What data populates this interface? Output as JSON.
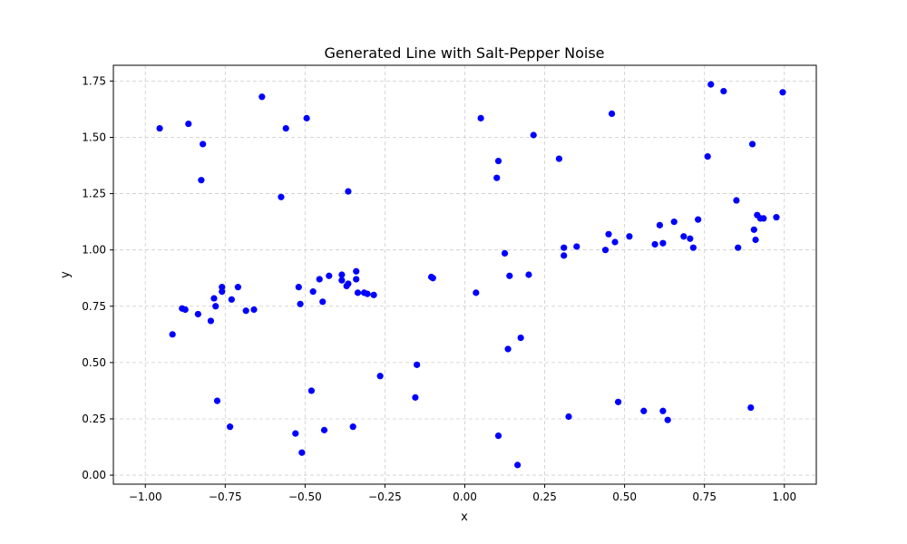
{
  "chart_data": {
    "type": "scatter",
    "title": "Generated Line with Salt-Pepper Noise",
    "xlabel": "x",
    "ylabel": "y",
    "xlim": [
      -1.1,
      1.1
    ],
    "ylim": [
      -0.04,
      1.82
    ],
    "x_ticks": [
      -1.0,
      -0.75,
      -0.5,
      -0.25,
      0.0,
      0.25,
      0.5,
      0.75,
      1.0
    ],
    "x_tick_labels": [
      "−1.00",
      "−0.75",
      "−0.50",
      "−0.25",
      "0.00",
      "0.25",
      "0.50",
      "0.75",
      "1.00"
    ],
    "y_ticks": [
      0.0,
      0.25,
      0.5,
      0.75,
      1.0,
      1.25,
      1.5,
      1.75
    ],
    "y_tick_labels": [
      "0.00",
      "0.25",
      "0.50",
      "0.75",
      "1.00",
      "1.25",
      "1.50",
      "1.75"
    ],
    "grid": true,
    "colors": {
      "points": "#0000ff",
      "grid": "#cccccc",
      "axes": "#000000"
    },
    "points": [
      [
        -0.955,
        1.54
      ],
      [
        -0.865,
        1.56
      ],
      [
        -0.82,
        1.47
      ],
      [
        -0.825,
        1.31
      ],
      [
        -0.915,
        0.625
      ],
      [
        -0.885,
        0.74
      ],
      [
        -0.875,
        0.735
      ],
      [
        -0.835,
        0.715
      ],
      [
        -0.795,
        0.685
      ],
      [
        -0.785,
        0.785
      ],
      [
        -0.78,
        0.75
      ],
      [
        -0.76,
        0.835
      ],
      [
        -0.76,
        0.815
      ],
      [
        -0.73,
        0.78
      ],
      [
        -0.71,
        0.835
      ],
      [
        -0.685,
        0.73
      ],
      [
        -0.66,
        0.735
      ],
      [
        -0.775,
        0.33
      ],
      [
        -0.735,
        0.215
      ],
      [
        -0.635,
        1.68
      ],
      [
        -0.575,
        1.235
      ],
      [
        -0.56,
        1.54
      ],
      [
        -0.495,
        1.585
      ],
      [
        -0.365,
        1.26
      ],
      [
        -0.52,
        0.835
      ],
      [
        -0.515,
        0.76
      ],
      [
        -0.475,
        0.815
      ],
      [
        -0.455,
        0.87
      ],
      [
        -0.445,
        0.77
      ],
      [
        -0.425,
        0.885
      ],
      [
        -0.385,
        0.89
      ],
      [
        -0.385,
        0.865
      ],
      [
        -0.37,
        0.84
      ],
      [
        -0.365,
        0.85
      ],
      [
        -0.34,
        0.905
      ],
      [
        -0.34,
        0.87
      ],
      [
        -0.335,
        0.81
      ],
      [
        -0.315,
        0.81
      ],
      [
        -0.305,
        0.805
      ],
      [
        -0.285,
        0.8
      ],
      [
        -0.48,
        0.375
      ],
      [
        -0.53,
        0.185
      ],
      [
        -0.51,
        0.1
      ],
      [
        -0.44,
        0.2
      ],
      [
        -0.35,
        0.215
      ],
      [
        -0.265,
        0.44
      ],
      [
        -0.155,
        0.345
      ],
      [
        -0.15,
        0.49
      ],
      [
        -0.105,
        0.88
      ],
      [
        -0.1,
        0.875
      ],
      [
        0.035,
        0.81
      ],
      [
        0.05,
        1.585
      ],
      [
        0.1,
        1.32
      ],
      [
        0.105,
        1.395
      ],
      [
        0.125,
        0.985
      ],
      [
        0.135,
        0.56
      ],
      [
        0.14,
        0.885
      ],
      [
        0.175,
        0.61
      ],
      [
        0.2,
        0.89
      ],
      [
        0.215,
        1.51
      ],
      [
        0.105,
        0.175
      ],
      [
        0.165,
        0.045
      ],
      [
        0.295,
        1.405
      ],
      [
        0.31,
        1.01
      ],
      [
        0.31,
        0.975
      ],
      [
        0.35,
        1.015
      ],
      [
        0.325,
        0.26
      ],
      [
        0.44,
        1.0
      ],
      [
        0.45,
        1.07
      ],
      [
        0.46,
        1.605
      ],
      [
        0.47,
        1.035
      ],
      [
        0.48,
        0.325
      ],
      [
        0.515,
        1.06
      ],
      [
        0.56,
        0.285
      ],
      [
        0.595,
        1.025
      ],
      [
        0.61,
        1.11
      ],
      [
        0.62,
        1.03
      ],
      [
        0.62,
        0.285
      ],
      [
        0.635,
        0.245
      ],
      [
        0.655,
        1.125
      ],
      [
        0.685,
        1.06
      ],
      [
        0.705,
        1.05
      ],
      [
        0.715,
        1.01
      ],
      [
        0.73,
        1.135
      ],
      [
        0.76,
        1.415
      ],
      [
        0.77,
        1.735
      ],
      [
        0.81,
        1.705
      ],
      [
        0.85,
        1.22
      ],
      [
        0.855,
        1.01
      ],
      [
        0.895,
        0.3
      ],
      [
        0.9,
        1.47
      ],
      [
        0.905,
        1.09
      ],
      [
        0.91,
        1.045
      ],
      [
        0.915,
        1.155
      ],
      [
        0.925,
        1.14
      ],
      [
        0.935,
        1.14
      ],
      [
        0.975,
        1.145
      ],
      [
        0.995,
        1.7
      ]
    ]
  }
}
